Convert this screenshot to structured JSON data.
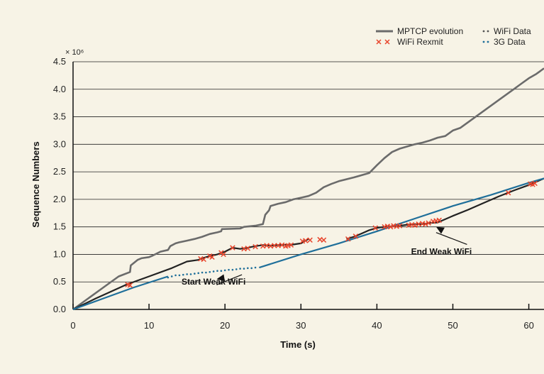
{
  "chart_data": {
    "type": "line",
    "xlabel": "Time (s)",
    "ylabel": "Sequence Numbers",
    "yscale_label": "× 10⁶",
    "xlim": [
      0,
      62
    ],
    "ylim": [
      0,
      4.5
    ],
    "xticks": [
      "0",
      "10",
      "20",
      "30",
      "40",
      "50",
      "60"
    ],
    "yticks": [
      "0.0",
      "0.5",
      "1.0",
      "1.5",
      "2.0",
      "2.5",
      "3.0",
      "3.5",
      "4.0",
      "4.5"
    ],
    "grid": "horizontal",
    "legend_position": "top-right",
    "legend": [
      {
        "label": "MPTCP evolution",
        "marker": "thick-line",
        "color": "#6b6b6b"
      },
      {
        "label": "WiFi Data",
        "marker": "dots",
        "color": "#555555"
      },
      {
        "label": "WiFi Rexmit",
        "marker": "cross",
        "color": "#e8452c"
      },
      {
        "label": "3G Data",
        "marker": "dots",
        "color": "#1f6f9a"
      }
    ],
    "annotations": [
      {
        "text": "Start Weak WiFi",
        "x": 18.5,
        "y": 0.45,
        "arrow_to": [
          18.9,
          0.55
        ]
      },
      {
        "text": "End Weak WiFi",
        "x": 48.5,
        "y": 1.0,
        "arrow_to": [
          47.8,
          1.5
        ]
      }
    ],
    "series": [
      {
        "name": "MPTCP evolution",
        "style": "line",
        "color": "#6b6b6b",
        "points": [
          [
            0,
            0
          ],
          [
            2,
            0.2
          ],
          [
            4,
            0.4
          ],
          [
            6,
            0.6
          ],
          [
            7.5,
            0.68
          ],
          [
            7.6,
            0.8
          ],
          [
            8.5,
            0.9
          ],
          [
            9,
            0.93
          ],
          [
            10,
            0.95
          ],
          [
            10.5,
            0.98
          ],
          [
            11.5,
            1.05
          ],
          [
            12.5,
            1.08
          ],
          [
            12.8,
            1.15
          ],
          [
            13.5,
            1.2
          ],
          [
            14,
            1.22
          ],
          [
            15,
            1.25
          ],
          [
            16,
            1.28
          ],
          [
            17,
            1.32
          ],
          [
            18,
            1.37
          ],
          [
            19,
            1.4
          ],
          [
            19.5,
            1.42
          ],
          [
            19.6,
            1.46
          ],
          [
            22,
            1.47
          ],
          [
            22.5,
            1.5
          ],
          [
            24,
            1.52
          ],
          [
            25,
            1.55
          ],
          [
            25.3,
            1.72
          ],
          [
            25.8,
            1.8
          ],
          [
            26,
            1.88
          ],
          [
            27,
            1.92
          ],
          [
            28,
            1.95
          ],
          [
            29,
            2.0
          ],
          [
            30,
            2.03
          ],
          [
            31,
            2.06
          ],
          [
            32,
            2.12
          ],
          [
            33,
            2.22
          ],
          [
            34,
            2.28
          ],
          [
            35,
            2.33
          ],
          [
            37,
            2.4
          ],
          [
            39,
            2.48
          ],
          [
            40,
            2.62
          ],
          [
            41,
            2.75
          ],
          [
            42,
            2.86
          ],
          [
            43,
            2.92
          ],
          [
            44,
            2.96
          ],
          [
            45,
            3.0
          ],
          [
            46,
            3.03
          ],
          [
            47,
            3.07
          ],
          [
            48,
            3.12
          ],
          [
            49,
            3.15
          ],
          [
            50,
            3.25
          ],
          [
            51,
            3.3
          ],
          [
            52,
            3.4
          ],
          [
            54,
            3.6
          ],
          [
            56,
            3.8
          ],
          [
            58,
            4.0
          ],
          [
            59,
            4.1
          ],
          [
            60,
            4.2
          ],
          [
            61,
            4.28
          ],
          [
            62,
            4.38
          ]
        ]
      },
      {
        "name": "WiFi Data",
        "style": "line",
        "color": "#222222",
        "points": [
          [
            0,
            0
          ],
          [
            3,
            0.2
          ],
          [
            7,
            0.45
          ],
          [
            10,
            0.6
          ],
          [
            13,
            0.75
          ],
          [
            15,
            0.87
          ],
          [
            16.5,
            0.9
          ],
          [
            17.5,
            0.95
          ],
          [
            19,
            1.0
          ],
          [
            20,
            1.05
          ],
          [
            21,
            1.12
          ],
          [
            22,
            1.1
          ],
          [
            23,
            1.12
          ],
          [
            24,
            1.15
          ],
          [
            25,
            1.17
          ],
          [
            26,
            1.16
          ],
          [
            27,
            1.17
          ],
          [
            29,
            1.18
          ],
          [
            30,
            1.2
          ],
          [
            31,
            1.28
          ]
        ]
      },
      {
        "name": "WiFi Data",
        "style": "line",
        "color": "#222222",
        "points": [
          [
            36,
            1.28
          ],
          [
            37,
            1.32
          ],
          [
            38,
            1.38
          ],
          [
            39,
            1.44
          ],
          [
            40,
            1.48
          ],
          [
            41,
            1.5
          ],
          [
            42,
            1.51
          ],
          [
            43,
            1.52
          ],
          [
            44,
            1.54
          ],
          [
            45,
            1.55
          ],
          [
            46,
            1.55
          ],
          [
            47,
            1.57
          ],
          [
            48,
            1.58
          ],
          [
            50,
            1.7
          ],
          [
            52,
            1.81
          ],
          [
            54,
            1.93
          ],
          [
            56,
            2.05
          ],
          [
            58,
            2.16
          ],
          [
            60,
            2.26
          ],
          [
            62,
            2.38
          ]
        ]
      },
      {
        "name": "3G Data",
        "style": "line",
        "color": "#1f6f9a",
        "points": [
          [
            0,
            0
          ],
          [
            4,
            0.2
          ],
          [
            8,
            0.4
          ],
          [
            12.5,
            0.6
          ]
        ]
      },
      {
        "name": "3G Data",
        "style": "dots",
        "color": "#1f6f9a",
        "points": [
          [
            12.5,
            0.58
          ],
          [
            13.0,
            0.6
          ],
          [
            13.5,
            0.62
          ],
          [
            14.0,
            0.62
          ],
          [
            14.5,
            0.63
          ],
          [
            15.0,
            0.64
          ],
          [
            15.5,
            0.64
          ],
          [
            16.0,
            0.65
          ],
          [
            16.5,
            0.66
          ],
          [
            17.0,
            0.67
          ],
          [
            17.5,
            0.67
          ],
          [
            18.0,
            0.68
          ],
          [
            18.5,
            0.69
          ],
          [
            19.0,
            0.7
          ],
          [
            19.5,
            0.7
          ],
          [
            20.0,
            0.71
          ],
          [
            20.5,
            0.72
          ],
          [
            21.0,
            0.72
          ],
          [
            21.5,
            0.73
          ],
          [
            22.0,
            0.74
          ],
          [
            22.5,
            0.74
          ],
          [
            23.0,
            0.75
          ],
          [
            23.5,
            0.75
          ],
          [
            24.0,
            0.76
          ]
        ]
      },
      {
        "name": "3G Data",
        "style": "line",
        "color": "#1f6f9a",
        "points": [
          [
            24.5,
            0.76
          ],
          [
            30,
            1.0
          ],
          [
            35,
            1.2
          ],
          [
            40,
            1.42
          ],
          [
            45,
            1.65
          ],
          [
            50,
            1.88
          ],
          [
            55,
            2.08
          ],
          [
            60,
            2.3
          ],
          [
            62,
            2.38
          ]
        ]
      },
      {
        "name": "WiFi Rexmit",
        "style": "cross",
        "color": "#e8452c",
        "points": [
          [
            7.2,
            0.45
          ],
          [
            7.5,
            0.44
          ],
          [
            16.8,
            0.92
          ],
          [
            17.2,
            0.91
          ],
          [
            18,
            0.97
          ],
          [
            18.3,
            0.95
          ],
          [
            19.5,
            1.03
          ],
          [
            19.8,
            1.0
          ],
          [
            21,
            1.12
          ],
          [
            22.5,
            1.1
          ],
          [
            23,
            1.11
          ],
          [
            24,
            1.14
          ],
          [
            25,
            1.15
          ],
          [
            25.5,
            1.16
          ],
          [
            26,
            1.15
          ],
          [
            26.5,
            1.16
          ],
          [
            27,
            1.16
          ],
          [
            27.5,
            1.17
          ],
          [
            28,
            1.15
          ],
          [
            28.3,
            1.16
          ],
          [
            28.7,
            1.17
          ],
          [
            30.2,
            1.24
          ],
          [
            30.6,
            1.25
          ],
          [
            31.2,
            1.26
          ],
          [
            32.5,
            1.27
          ],
          [
            33,
            1.26
          ],
          [
            36.2,
            1.28
          ],
          [
            37.2,
            1.33
          ],
          [
            39.8,
            1.48
          ],
          [
            41,
            1.5
          ],
          [
            41.4,
            1.51
          ],
          [
            41.8,
            1.5
          ],
          [
            42.2,
            1.52
          ],
          [
            42.6,
            1.51
          ],
          [
            43,
            1.52
          ],
          [
            44.2,
            1.53
          ],
          [
            44.6,
            1.54
          ],
          [
            45,
            1.53
          ],
          [
            45.5,
            1.55
          ],
          [
            46,
            1.56
          ],
          [
            46.4,
            1.55
          ],
          [
            46.8,
            1.57
          ],
          [
            47.4,
            1.6
          ],
          [
            47.8,
            1.61
          ],
          [
            48.2,
            1.62
          ],
          [
            57.3,
            2.12
          ],
          [
            60.2,
            2.28
          ],
          [
            60.5,
            2.27
          ],
          [
            60.8,
            2.29
          ]
        ]
      }
    ]
  }
}
